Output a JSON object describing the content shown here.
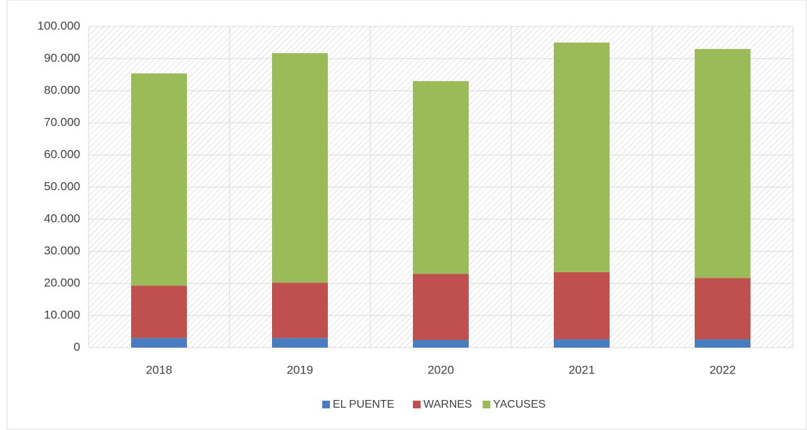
{
  "chart_data": {
    "type": "bar",
    "stacked": true,
    "categories": [
      "2018",
      "2019",
      "2020",
      "2021",
      "2022"
    ],
    "series": [
      {
        "name": "EL PUENTE",
        "color": "#4a7dc0",
        "values": [
          3000,
          3000,
          2400,
          2600,
          2600
        ]
      },
      {
        "name": "WARNES",
        "color": "#c0504d",
        "values": [
          16300,
          17200,
          20600,
          20900,
          19100
        ]
      },
      {
        "name": "YACUSES",
        "color": "#9bbb59",
        "values": [
          66100,
          71500,
          60000,
          71500,
          71300
        ]
      }
    ],
    "ylim": [
      0,
      100000
    ],
    "yticks": [
      0,
      {
        "value": 10000,
        "label": "10.000"
      },
      {
        "value": 20000,
        "label": "20.000"
      },
      {
        "value": 30000,
        "label": "30.000"
      },
      {
        "value": 40000,
        "label": "40.000"
      },
      {
        "value": 50000,
        "label": "50.000"
      },
      {
        "value": 60000,
        "label": "60.000"
      },
      {
        "value": 70000,
        "label": "70.000"
      },
      {
        "value": 80000,
        "label": "80.000"
      },
      {
        "value": 90000,
        "label": "90.000"
      },
      {
        "value": 100000,
        "label": "100.000"
      }
    ],
    "grid": true,
    "legend": "bottom"
  }
}
